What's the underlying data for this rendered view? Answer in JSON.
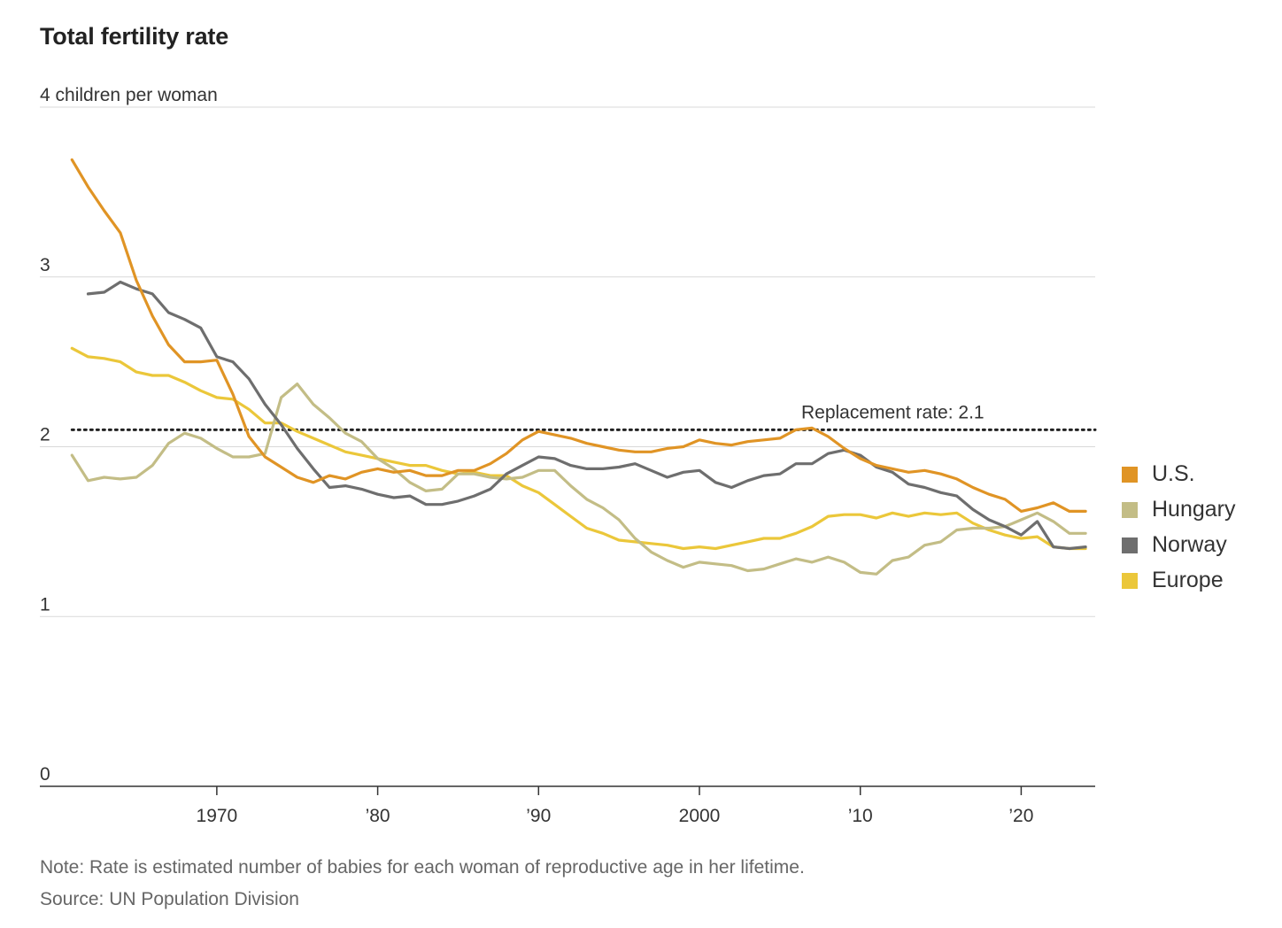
{
  "title": "Total fertility rate",
  "note": "Note: Rate is estimated number of babies for each woman of reproductive age in her lifetime.",
  "source": "Source: UN Population Division",
  "chart_data": {
    "type": "line",
    "y_ticks": [
      {
        "value": 0,
        "label": "0"
      },
      {
        "value": 1,
        "label": "1"
      },
      {
        "value": 2,
        "label": "2"
      },
      {
        "value": 3,
        "label": "3"
      },
      {
        "value": 4,
        "label": "4 children per woman"
      }
    ],
    "x_ticks": [
      {
        "value": 1970,
        "label": "1970"
      },
      {
        "value": 1980,
        "label": "’80"
      },
      {
        "value": 1990,
        "label": "’90"
      },
      {
        "value": 2000,
        "label": "2000"
      },
      {
        "value": 2010,
        "label": "’10"
      },
      {
        "value": 2020,
        "label": "’20"
      }
    ],
    "xlim": [
      1959,
      2024.6
    ],
    "ylim": [
      0,
      4
    ],
    "grid": true,
    "legend_position": "right",
    "reference_line": {
      "value": 2.1,
      "label": "Replacement rate: 2.1"
    },
    "series": [
      {
        "name": "U.S.",
        "color": "#e09425",
        "x": [
          1961,
          1962,
          1963,
          1964,
          1965,
          1966,
          1967,
          1968,
          1969,
          1970,
          1971,
          1972,
          1973,
          1974,
          1975,
          1976,
          1977,
          1978,
          1979,
          1980,
          1981,
          1982,
          1983,
          1984,
          1985,
          1986,
          1987,
          1988,
          1989,
          1990,
          1991,
          1992,
          1993,
          1994,
          1995,
          1996,
          1997,
          1998,
          1999,
          2000,
          2001,
          2002,
          2003,
          2004,
          2005,
          2006,
          2007,
          2008,
          2009,
          2010,
          2011,
          2012,
          2013,
          2014,
          2015,
          2016,
          2017,
          2018,
          2019,
          2020,
          2021,
          2022,
          2023,
          2024
        ],
        "values": [
          3.69,
          3.53,
          3.39,
          3.26,
          2.98,
          2.77,
          2.6,
          2.5,
          2.5,
          2.51,
          2.31,
          2.06,
          1.94,
          1.88,
          1.82,
          1.79,
          1.83,
          1.81,
          1.85,
          1.87,
          1.85,
          1.86,
          1.83,
          1.83,
          1.86,
          1.86,
          1.9,
          1.96,
          2.04,
          2.09,
          2.07,
          2.05,
          2.02,
          2.0,
          1.98,
          1.97,
          1.97,
          1.99,
          2.0,
          2.04,
          2.02,
          2.01,
          2.03,
          2.04,
          2.05,
          2.1,
          2.11,
          2.06,
          1.99,
          1.93,
          1.89,
          1.87,
          1.85,
          1.86,
          1.84,
          1.81,
          1.76,
          1.72,
          1.69,
          1.62,
          1.64,
          1.67,
          1.62,
          1.62
        ]
      },
      {
        "name": "Hungary",
        "color": "#c3bd86",
        "x": [
          1961,
          1962,
          1963,
          1964,
          1965,
          1966,
          1967,
          1968,
          1969,
          1970,
          1971,
          1972,
          1973,
          1974,
          1975,
          1976,
          1977,
          1978,
          1979,
          1980,
          1981,
          1982,
          1983,
          1984,
          1985,
          1986,
          1987,
          1988,
          1989,
          1990,
          1991,
          1992,
          1993,
          1994,
          1995,
          1996,
          1997,
          1998,
          1999,
          2000,
          2001,
          2002,
          2003,
          2004,
          2005,
          2006,
          2007,
          2008,
          2009,
          2010,
          2011,
          2012,
          2013,
          2014,
          2015,
          2016,
          2017,
          2018,
          2019,
          2020,
          2021,
          2022,
          2023,
          2024
        ],
        "values": [
          1.95,
          1.8,
          1.82,
          1.81,
          1.82,
          1.89,
          2.02,
          2.08,
          2.05,
          1.99,
          1.94,
          1.94,
          1.96,
          2.29,
          2.37,
          2.25,
          2.17,
          2.08,
          2.03,
          1.93,
          1.87,
          1.79,
          1.74,
          1.75,
          1.84,
          1.84,
          1.82,
          1.81,
          1.82,
          1.86,
          1.86,
          1.77,
          1.69,
          1.64,
          1.57,
          1.46,
          1.38,
          1.33,
          1.29,
          1.32,
          1.31,
          1.3,
          1.27,
          1.28,
          1.31,
          1.34,
          1.32,
          1.35,
          1.32,
          1.26,
          1.25,
          1.33,
          1.35,
          1.42,
          1.44,
          1.51,
          1.52,
          1.52,
          1.53,
          1.57,
          1.61,
          1.56,
          1.49,
          1.49
        ]
      },
      {
        "name": "Norway",
        "color": "#6e6e6e",
        "x": [
          1962,
          1963,
          1964,
          1965,
          1966,
          1967,
          1968,
          1969,
          1970,
          1971,
          1972,
          1973,
          1974,
          1975,
          1976,
          1977,
          1978,
          1979,
          1980,
          1981,
          1982,
          1983,
          1984,
          1985,
          1986,
          1987,
          1988,
          1989,
          1990,
          1991,
          1992,
          1993,
          1994,
          1995,
          1996,
          1997,
          1998,
          1999,
          2000,
          2001,
          2002,
          2003,
          2004,
          2005,
          2006,
          2007,
          2008,
          2009,
          2010,
          2011,
          2012,
          2013,
          2014,
          2015,
          2016,
          2017,
          2018,
          2019,
          2020,
          2021,
          2022,
          2023,
          2024
        ],
        "values": [
          2.9,
          2.91,
          2.97,
          2.93,
          2.9,
          2.79,
          2.75,
          2.7,
          2.53,
          2.5,
          2.4,
          2.25,
          2.13,
          1.99,
          1.87,
          1.76,
          1.77,
          1.75,
          1.72,
          1.7,
          1.71,
          1.66,
          1.66,
          1.68,
          1.71,
          1.75,
          1.84,
          1.89,
          1.94,
          1.93,
          1.89,
          1.87,
          1.87,
          1.88,
          1.9,
          1.86,
          1.82,
          1.85,
          1.86,
          1.79,
          1.76,
          1.8,
          1.83,
          1.84,
          1.9,
          1.9,
          1.96,
          1.98,
          1.95,
          1.88,
          1.85,
          1.78,
          1.76,
          1.73,
          1.71,
          1.63,
          1.57,
          1.53,
          1.48,
          1.56,
          1.41,
          1.4,
          1.41
        ]
      },
      {
        "name": "Europe",
        "color": "#ebc73a",
        "x": [
          1961,
          1962,
          1963,
          1964,
          1965,
          1966,
          1967,
          1968,
          1969,
          1970,
          1971,
          1972,
          1973,
          1974,
          1975,
          1976,
          1977,
          1978,
          1979,
          1980,
          1981,
          1982,
          1983,
          1984,
          1985,
          1986,
          1987,
          1988,
          1989,
          1990,
          1991,
          1992,
          1993,
          1994,
          1995,
          1996,
          1997,
          1998,
          1999,
          2000,
          2001,
          2002,
          2003,
          2004,
          2005,
          2006,
          2007,
          2008,
          2009,
          2010,
          2011,
          2012,
          2013,
          2014,
          2015,
          2016,
          2017,
          2018,
          2019,
          2020,
          2021,
          2022,
          2023,
          2024
        ],
        "values": [
          2.58,
          2.53,
          2.52,
          2.5,
          2.44,
          2.42,
          2.42,
          2.38,
          2.33,
          2.29,
          2.28,
          2.22,
          2.14,
          2.14,
          2.09,
          2.05,
          2.01,
          1.97,
          1.95,
          1.93,
          1.91,
          1.89,
          1.89,
          1.86,
          1.84,
          1.85,
          1.83,
          1.83,
          1.77,
          1.73,
          1.66,
          1.59,
          1.52,
          1.49,
          1.45,
          1.44,
          1.43,
          1.42,
          1.4,
          1.41,
          1.4,
          1.42,
          1.44,
          1.46,
          1.46,
          1.49,
          1.53,
          1.59,
          1.6,
          1.6,
          1.58,
          1.61,
          1.59,
          1.61,
          1.6,
          1.61,
          1.55,
          1.51,
          1.48,
          1.46,
          1.47,
          1.41,
          1.4,
          1.4
        ]
      }
    ]
  }
}
